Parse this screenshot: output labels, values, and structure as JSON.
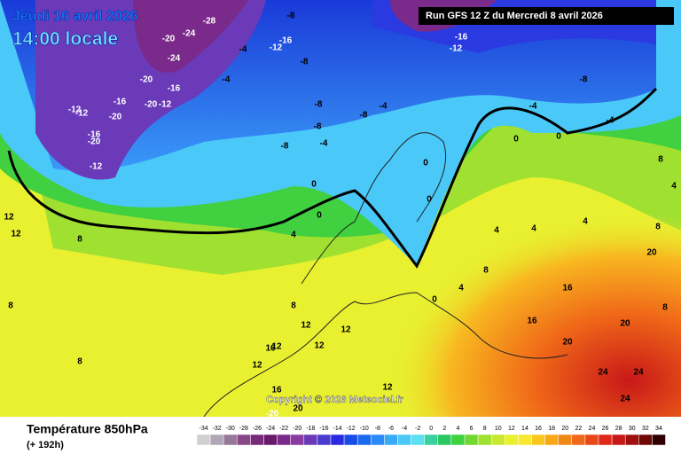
{
  "header": {
    "date": "Jeudi 16 avril 2026",
    "time": "14:00 locale",
    "run": "Run GFS 12 Z du Mercredi 8 avril 2026"
  },
  "footer": {
    "variable": "Température 850hPa",
    "lead": "(+ 192h)",
    "copyright": "Copyright © 2026 Meteociel.fr"
  },
  "scale": {
    "values": [
      -34,
      -32,
      -30,
      -28,
      -26,
      -24,
      -22,
      -20,
      -18,
      -16,
      -14,
      -12,
      -10,
      -8,
      -6,
      -4,
      -2,
      0,
      2,
      4,
      6,
      8,
      10,
      12,
      14,
      16,
      18,
      20,
      22,
      24,
      26,
      28,
      30,
      32,
      34
    ],
    "colors": [
      "#d0d0d0",
      "#b0a8b8",
      "#987898",
      "#884888",
      "#782878",
      "#6a1a6a",
      "#7a2a8a",
      "#8a3aa0",
      "#6a3ab8",
      "#4a3ad0",
      "#2a2ae0",
      "#1a4ae8",
      "#1a6af0",
      "#2a8af8",
      "#3aaaf8",
      "#4ac8f8",
      "#5ae0f0",
      "#3ad0a0",
      "#2ac860",
      "#40d040",
      "#70d830",
      "#a0e030",
      "#c8e830",
      "#e8f030",
      "#f8e830",
      "#f8c820",
      "#f8a818",
      "#f08818",
      "#f06818",
      "#e84818",
      "#e02818",
      "#c81818",
      "#a01010",
      "#700808",
      "#300000"
    ]
  },
  "contour_labels": [
    -28,
    -24,
    -20,
    -24,
    -20,
    -16,
    -16,
    -20,
    -12,
    -12,
    -12,
    -20,
    -16,
    -20,
    -12,
    -16,
    -12,
    -8,
    -4,
    -4,
    -8,
    -8,
    -8,
    -4,
    -8,
    -4,
    -8,
    -16,
    -12,
    -8,
    -4,
    -4,
    0,
    0,
    0,
    0,
    4,
    12,
    12,
    8,
    8,
    8,
    8,
    12,
    12,
    12,
    12,
    12,
    16,
    16,
    12,
    16,
    20,
    24,
    24,
    24,
    16,
    20,
    20,
    8,
    8,
    4,
    4,
    4,
    4,
    0,
    8,
    0,
    0,
    4,
    8,
    -20,
    20
  ]
}
